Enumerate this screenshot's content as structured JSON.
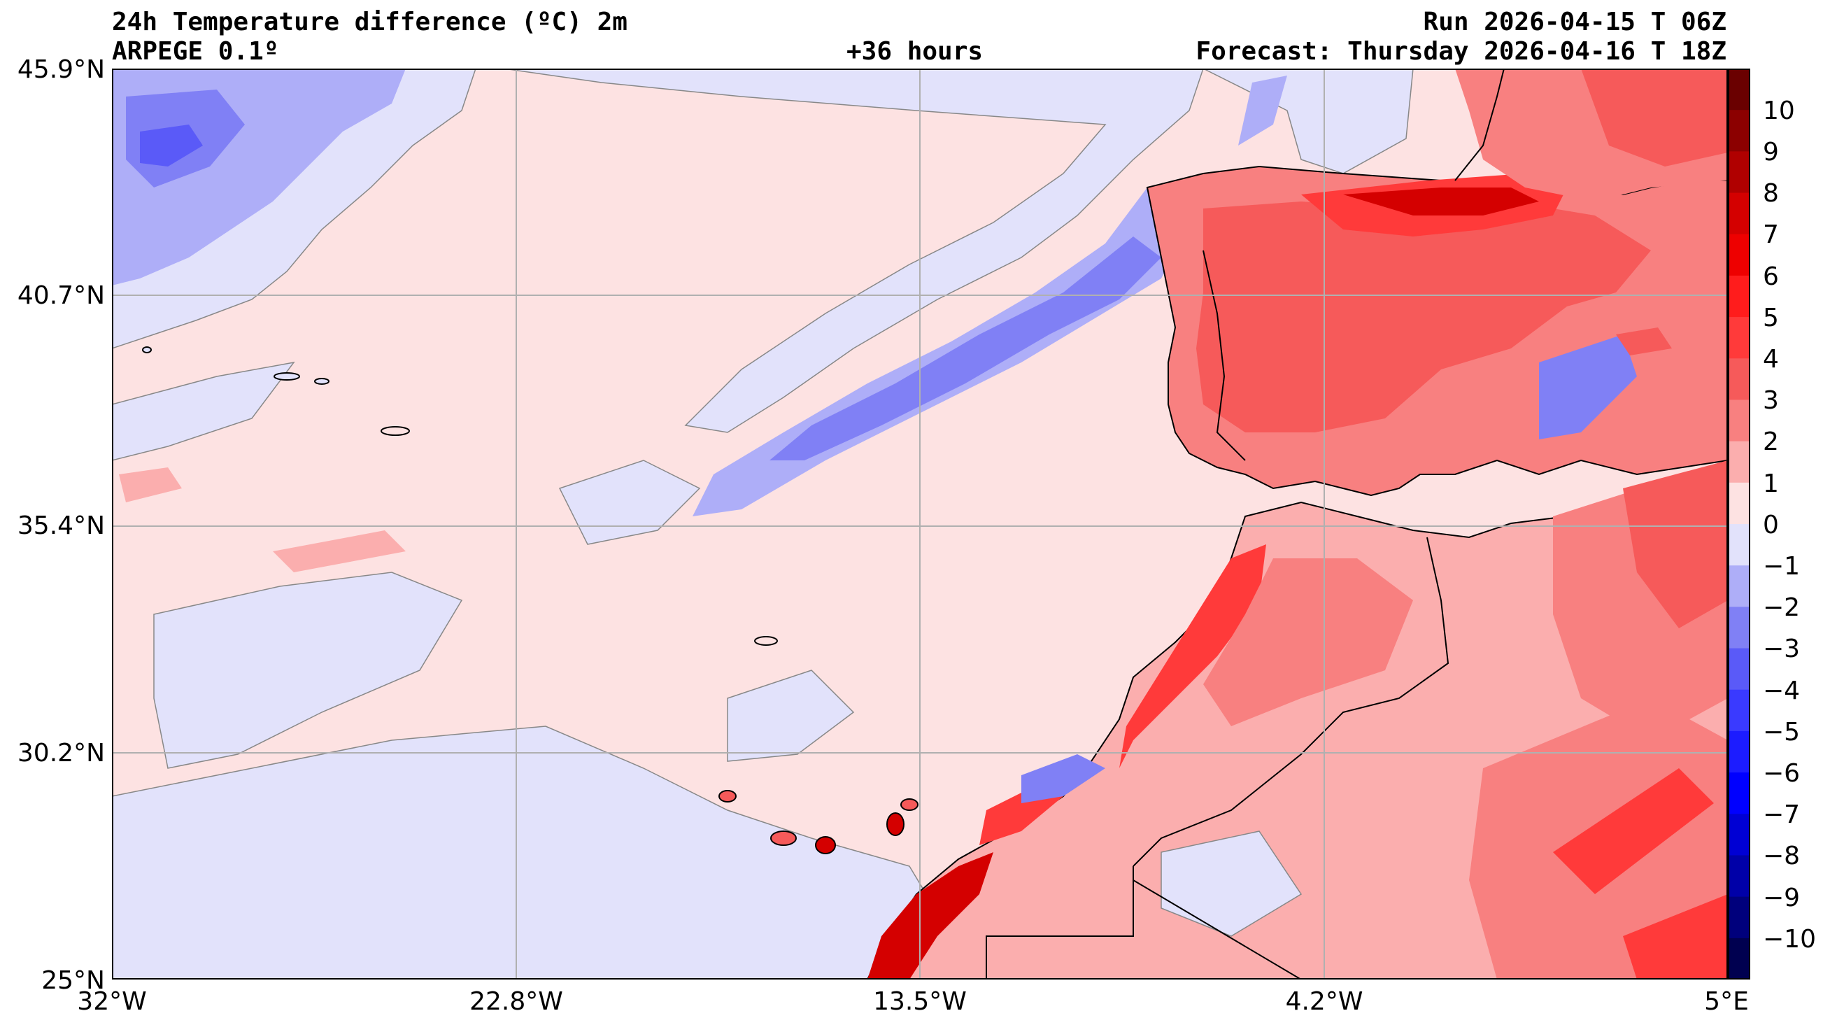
{
  "header": {
    "title": "24h Temperature difference (ºC) 2m",
    "model": "ARPEGE 0.1º",
    "lead": "+36 hours",
    "run": "Run 2026-04-15 T 06Z",
    "forecast": "Forecast: Thursday 2026-04-16 T 18Z"
  },
  "axes": {
    "lat_labels": [
      "45.9°N",
      "40.7°N",
      "35.4°N",
      "30.2°N",
      "25°N"
    ],
    "lon_labels": [
      "32°W",
      "22.8°W",
      "13.5°W",
      "4.2°W",
      "5°E"
    ],
    "extent": {
      "lon_min": -32,
      "lon_max": 5,
      "lat_min": 25,
      "lat_max": 45.9
    },
    "grid": true
  },
  "colorbar": {
    "labels": [
      "10",
      "9",
      "8",
      "7",
      "6",
      "5",
      "4",
      "3",
      "2",
      "1",
      "0",
      "−1",
      "−2",
      "−3",
      "−4",
      "−5",
      "−6",
      "−7",
      "−8",
      "−9",
      "−10"
    ],
    "levels": [
      -11,
      -10,
      -9,
      -8,
      -7,
      -6,
      -5,
      -4,
      -3,
      -2,
      -1,
      0,
      1,
      2,
      3,
      4,
      5,
      6,
      7,
      8,
      9,
      10,
      11
    ],
    "colors": [
      "#000050",
      "#00007c",
      "#0000a8",
      "#0000d4",
      "#0000ff",
      "#1c1cff",
      "#3a3aff",
      "#5a5af8",
      "#8080f5",
      "#aeaef8",
      "#e2e2fb",
      "#fde2e2",
      "#fbaeae",
      "#f88080",
      "#f65a5a",
      "#ff3a3a",
      "#ff1c1c",
      "#ee0000",
      "#d40000",
      "#b00000",
      "#8c0000",
      "#6a0000"
    ]
  },
  "colors": {
    "ocean_pos": "#fde2e2",
    "ocean_neg": "#e2e2fb",
    "neg_2": "#aeaef8",
    "neg_3": "#8080f5",
    "pos_2": "#fbaeae",
    "pos_3": "#f88080",
    "pos_4": "#f65a5a",
    "pos_5": "#ff3a3a",
    "pos_7": "#ee0000",
    "pos_8": "#d40000"
  }
}
